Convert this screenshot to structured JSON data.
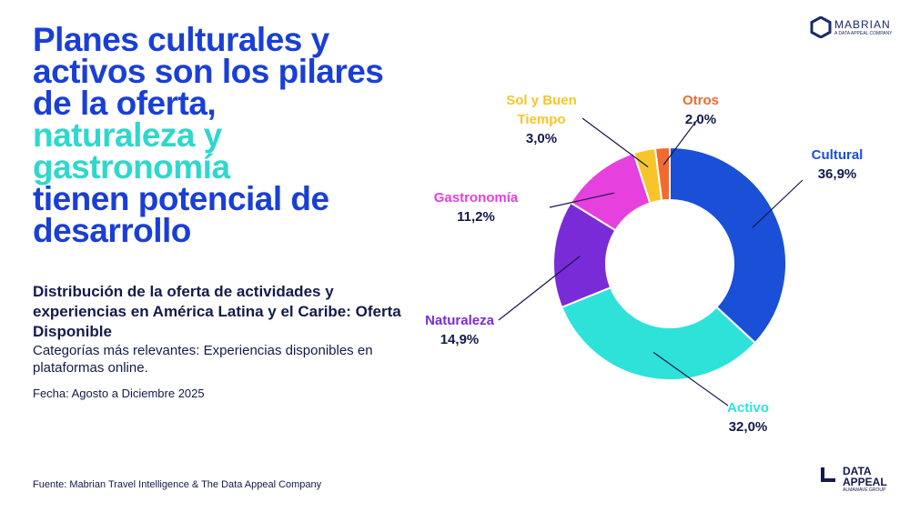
{
  "header": {
    "title": [
      "Planes culturales y activos son los pilares de la oferta,",
      "naturaleza y gastronomía",
      "tienen potencial de desarrollo"
    ],
    "subtitle": "Distribución de la oferta de actividades y experiencias en América Latina y el Caribe: Oferta Disponible",
    "description": "Categorías más relevantes: Experiencias disponibles en plataformas online.",
    "date": "Fecha: Agosto a Diciembre 2025"
  },
  "footer": {
    "source": "Fuente: Mabrian Travel Intelligence & The Data Appeal Company"
  },
  "logos": {
    "mabrian": "MABRIAN",
    "mabrian_tag": "A DATA APPEAL COMPANY",
    "data_appeal": "DATA APPEAL",
    "data_appeal_tag": "ALMAWAVE GROUP"
  },
  "chart_data": {
    "type": "donut",
    "categories": [
      "Cultural",
      "Activo",
      "Naturaleza",
      "Gastronomía",
      "Sol y Buen Tiempo",
      "Otros"
    ],
    "values": [
      36.9,
      32.0,
      14.9,
      11.2,
      3.0,
      2.0
    ],
    "value_labels": [
      "36,9%",
      "32,0%",
      "14,9%",
      "11,2%",
      "3,0%",
      "2,0%"
    ],
    "colors": [
      "#1a4fd8",
      "#2ee2da",
      "#7a2bd8",
      "#e640de",
      "#f7c52a",
      "#f26a2e"
    ]
  }
}
